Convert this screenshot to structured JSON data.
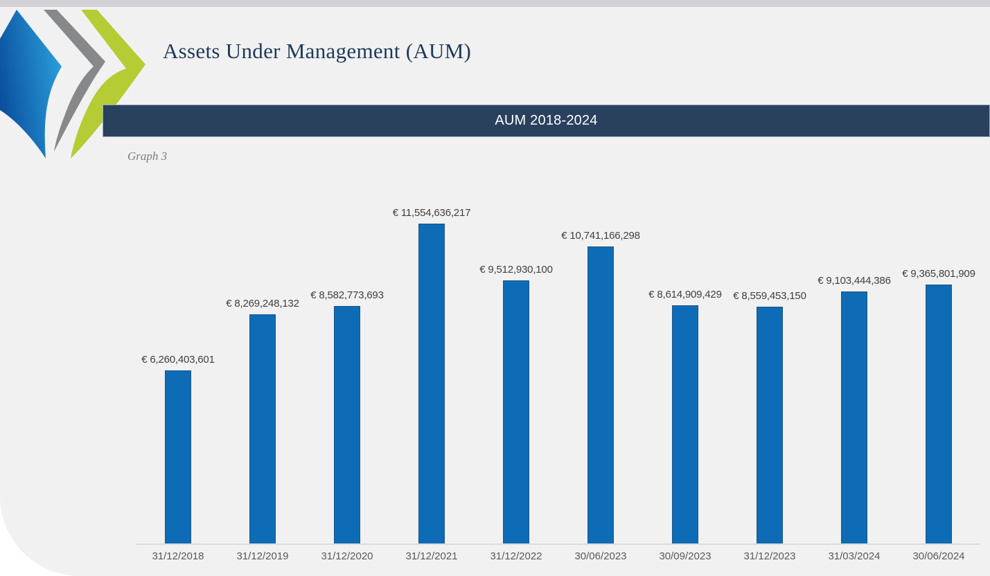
{
  "header": {
    "title": "Assets Under Management (AUM)",
    "banner_label": "AUM 2018-2024",
    "graph_caption": "Graph 3"
  },
  "logo": {
    "name": "triple-chevron-logo",
    "colors": {
      "blue_dark": "#0a4f9e",
      "blue_light": "#2ba0dc",
      "gray": "#87888a",
      "green": "#b5cc34"
    }
  },
  "theme": {
    "top_strip": "#d3d1d5",
    "page_bg": "#f1f1f2",
    "banner_bg": "#2a415e",
    "banner_text": "#ffffff",
    "title_color": "#1e3a57",
    "caption_color": "#7c7c7c",
    "bar_fill": "#0d6cb5",
    "bar_border": "#1f5486",
    "data_label_color": "#3f3f3f",
    "tick_color": "#595959",
    "axis_color": "#dbdbdb"
  },
  "chart_data": {
    "type": "bar",
    "title": "AUM 2018-2024",
    "currency": "EUR",
    "categories": [
      "31/12/2018",
      "31/12/2019",
      "31/12/2020",
      "31/12/2021",
      "31/12/2022",
      "30/06/2023",
      "30/09/2023",
      "31/12/2023",
      "31/03/2024",
      "30/06/2024"
    ],
    "values": [
      6260403601,
      8269248132,
      8582773693,
      11554636217,
      9512930100,
      10741166298,
      8614909429,
      8559453150,
      9103444386,
      9365801909
    ],
    "data_labels": [
      "€ 6,260,403,601",
      "€ 8,269,248,132",
      "€ 8,582,773,693",
      "€ 11,554,636,217",
      "€ 9,512,930,100",
      "€ 10,741,166,298",
      "€ 8,614,909,429",
      "€ 8,559,453,150",
      "€ 9,103,444,386",
      "€ 9,365,801,909"
    ],
    "xlabel": "",
    "ylabel": "",
    "ylim": [
      0,
      11554636217
    ],
    "grid": false,
    "legend": "none",
    "data_label_position": "above-bars"
  }
}
